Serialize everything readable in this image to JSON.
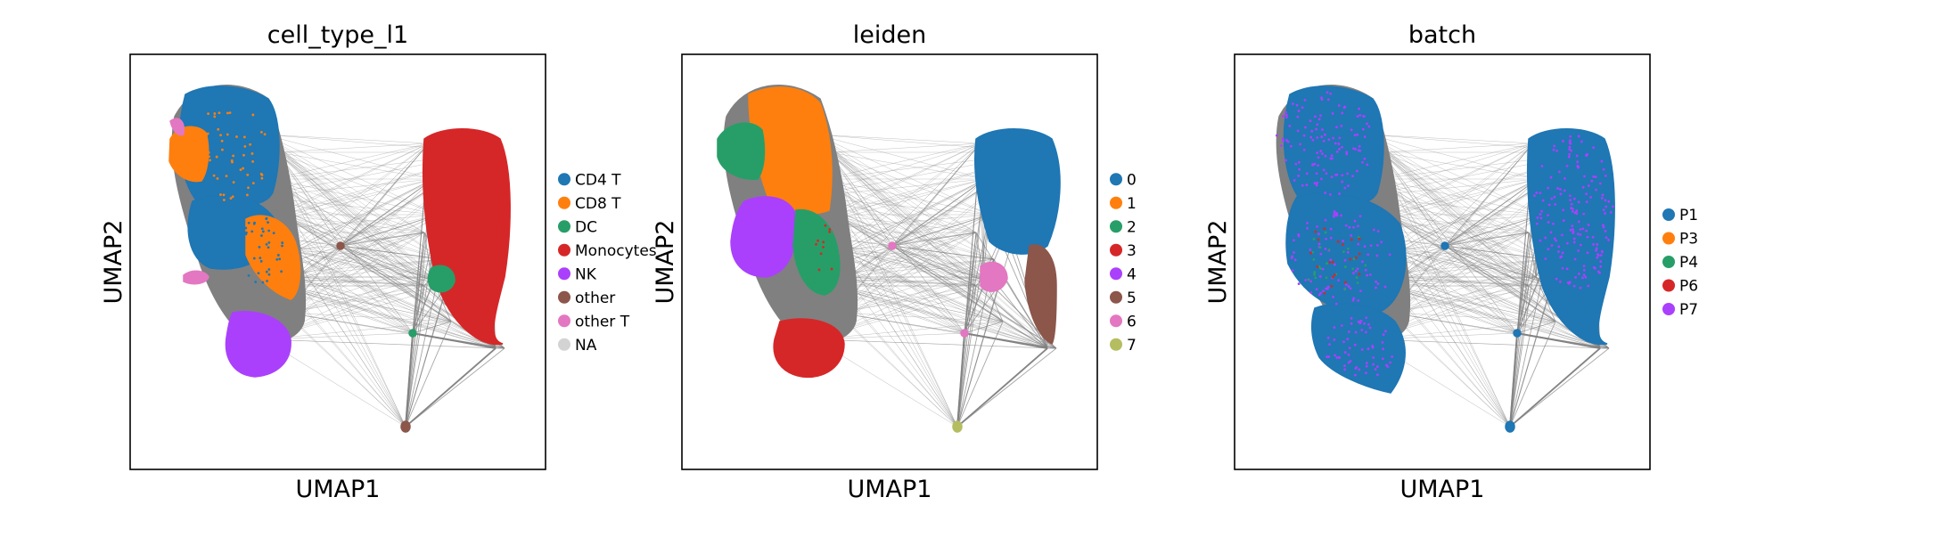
{
  "panels": [
    {
      "title": "cell_type_l1",
      "xlabel": "UMAP1",
      "ylabel": "UMAP2",
      "legend": [
        {
          "label": "CD4 T",
          "color": "#1f77b4"
        },
        {
          "label": "CD8 T",
          "color": "#ff7f0e"
        },
        {
          "label": "DC",
          "color": "#279e68"
        },
        {
          "label": "Monocytes",
          "color": "#d62728"
        },
        {
          "label": "NK",
          "color": "#aa40fc"
        },
        {
          "label": "other",
          "color": "#8c564b"
        },
        {
          "label": "other T",
          "color": "#e377c2"
        },
        {
          "label": "NA",
          "color": "#d3d3d3"
        }
      ]
    },
    {
      "title": "leiden",
      "xlabel": "UMAP1",
      "ylabel": "UMAP2",
      "legend": [
        {
          "label": "0",
          "color": "#1f77b4"
        },
        {
          "label": "1",
          "color": "#ff7f0e"
        },
        {
          "label": "2",
          "color": "#279e68"
        },
        {
          "label": "3",
          "color": "#d62728"
        },
        {
          "label": "4",
          "color": "#aa40fc"
        },
        {
          "label": "5",
          "color": "#8c564b"
        },
        {
          "label": "6",
          "color": "#e377c2"
        },
        {
          "label": "7",
          "color": "#b5bd61"
        }
      ]
    },
    {
      "title": "batch",
      "xlabel": "UMAP1",
      "ylabel": "UMAP2",
      "legend": [
        {
          "label": "P1",
          "color": "#1f77b4"
        },
        {
          "label": "P3",
          "color": "#ff7f0e"
        },
        {
          "label": "P4",
          "color": "#279e68"
        },
        {
          "label": "P6",
          "color": "#d62728"
        },
        {
          "label": "P7",
          "color": "#aa40fc"
        }
      ]
    }
  ],
  "chart_data": [
    {
      "type": "scatter",
      "title": "cell_type_l1",
      "xlabel": "UMAP1",
      "ylabel": "UMAP2",
      "color_by": "cell_type_l1",
      "axis_ticks": false,
      "grid": false,
      "legend_placement": "right margin",
      "categories": [
        "CD4 T",
        "CD8 T",
        "DC",
        "Monocytes",
        "NK",
        "other",
        "other T",
        "NA"
      ],
      "colors": [
        "#1f77b4",
        "#ff7f0e",
        "#279e68",
        "#d62728",
        "#aa40fc",
        "#8c564b",
        "#e377c2",
        "#d3d3d3"
      ],
      "connectivity_edges": true,
      "edge_color": "#808080"
    },
    {
      "type": "scatter",
      "title": "leiden",
      "xlabel": "UMAP1",
      "ylabel": "UMAP2",
      "color_by": "leiden",
      "axis_ticks": false,
      "grid": false,
      "legend_placement": "right margin",
      "categories": [
        "0",
        "1",
        "2",
        "3",
        "4",
        "5",
        "6",
        "7"
      ],
      "colors": [
        "#1f77b4",
        "#ff7f0e",
        "#279e68",
        "#d62728",
        "#aa40fc",
        "#8c564b",
        "#e377c2",
        "#b5bd61"
      ],
      "connectivity_edges": true,
      "edge_color": "#808080"
    },
    {
      "type": "scatter",
      "title": "batch",
      "xlabel": "UMAP1",
      "ylabel": "UMAP2",
      "color_by": "batch",
      "axis_ticks": false,
      "grid": false,
      "legend_placement": "right margin",
      "categories": [
        "P1",
        "P3",
        "P4",
        "P6",
        "P7"
      ],
      "colors": [
        "#1f77b4",
        "#ff7f0e",
        "#279e68",
        "#d62728",
        "#aa40fc"
      ],
      "connectivity_edges": true,
      "edge_color": "#808080"
    }
  ]
}
